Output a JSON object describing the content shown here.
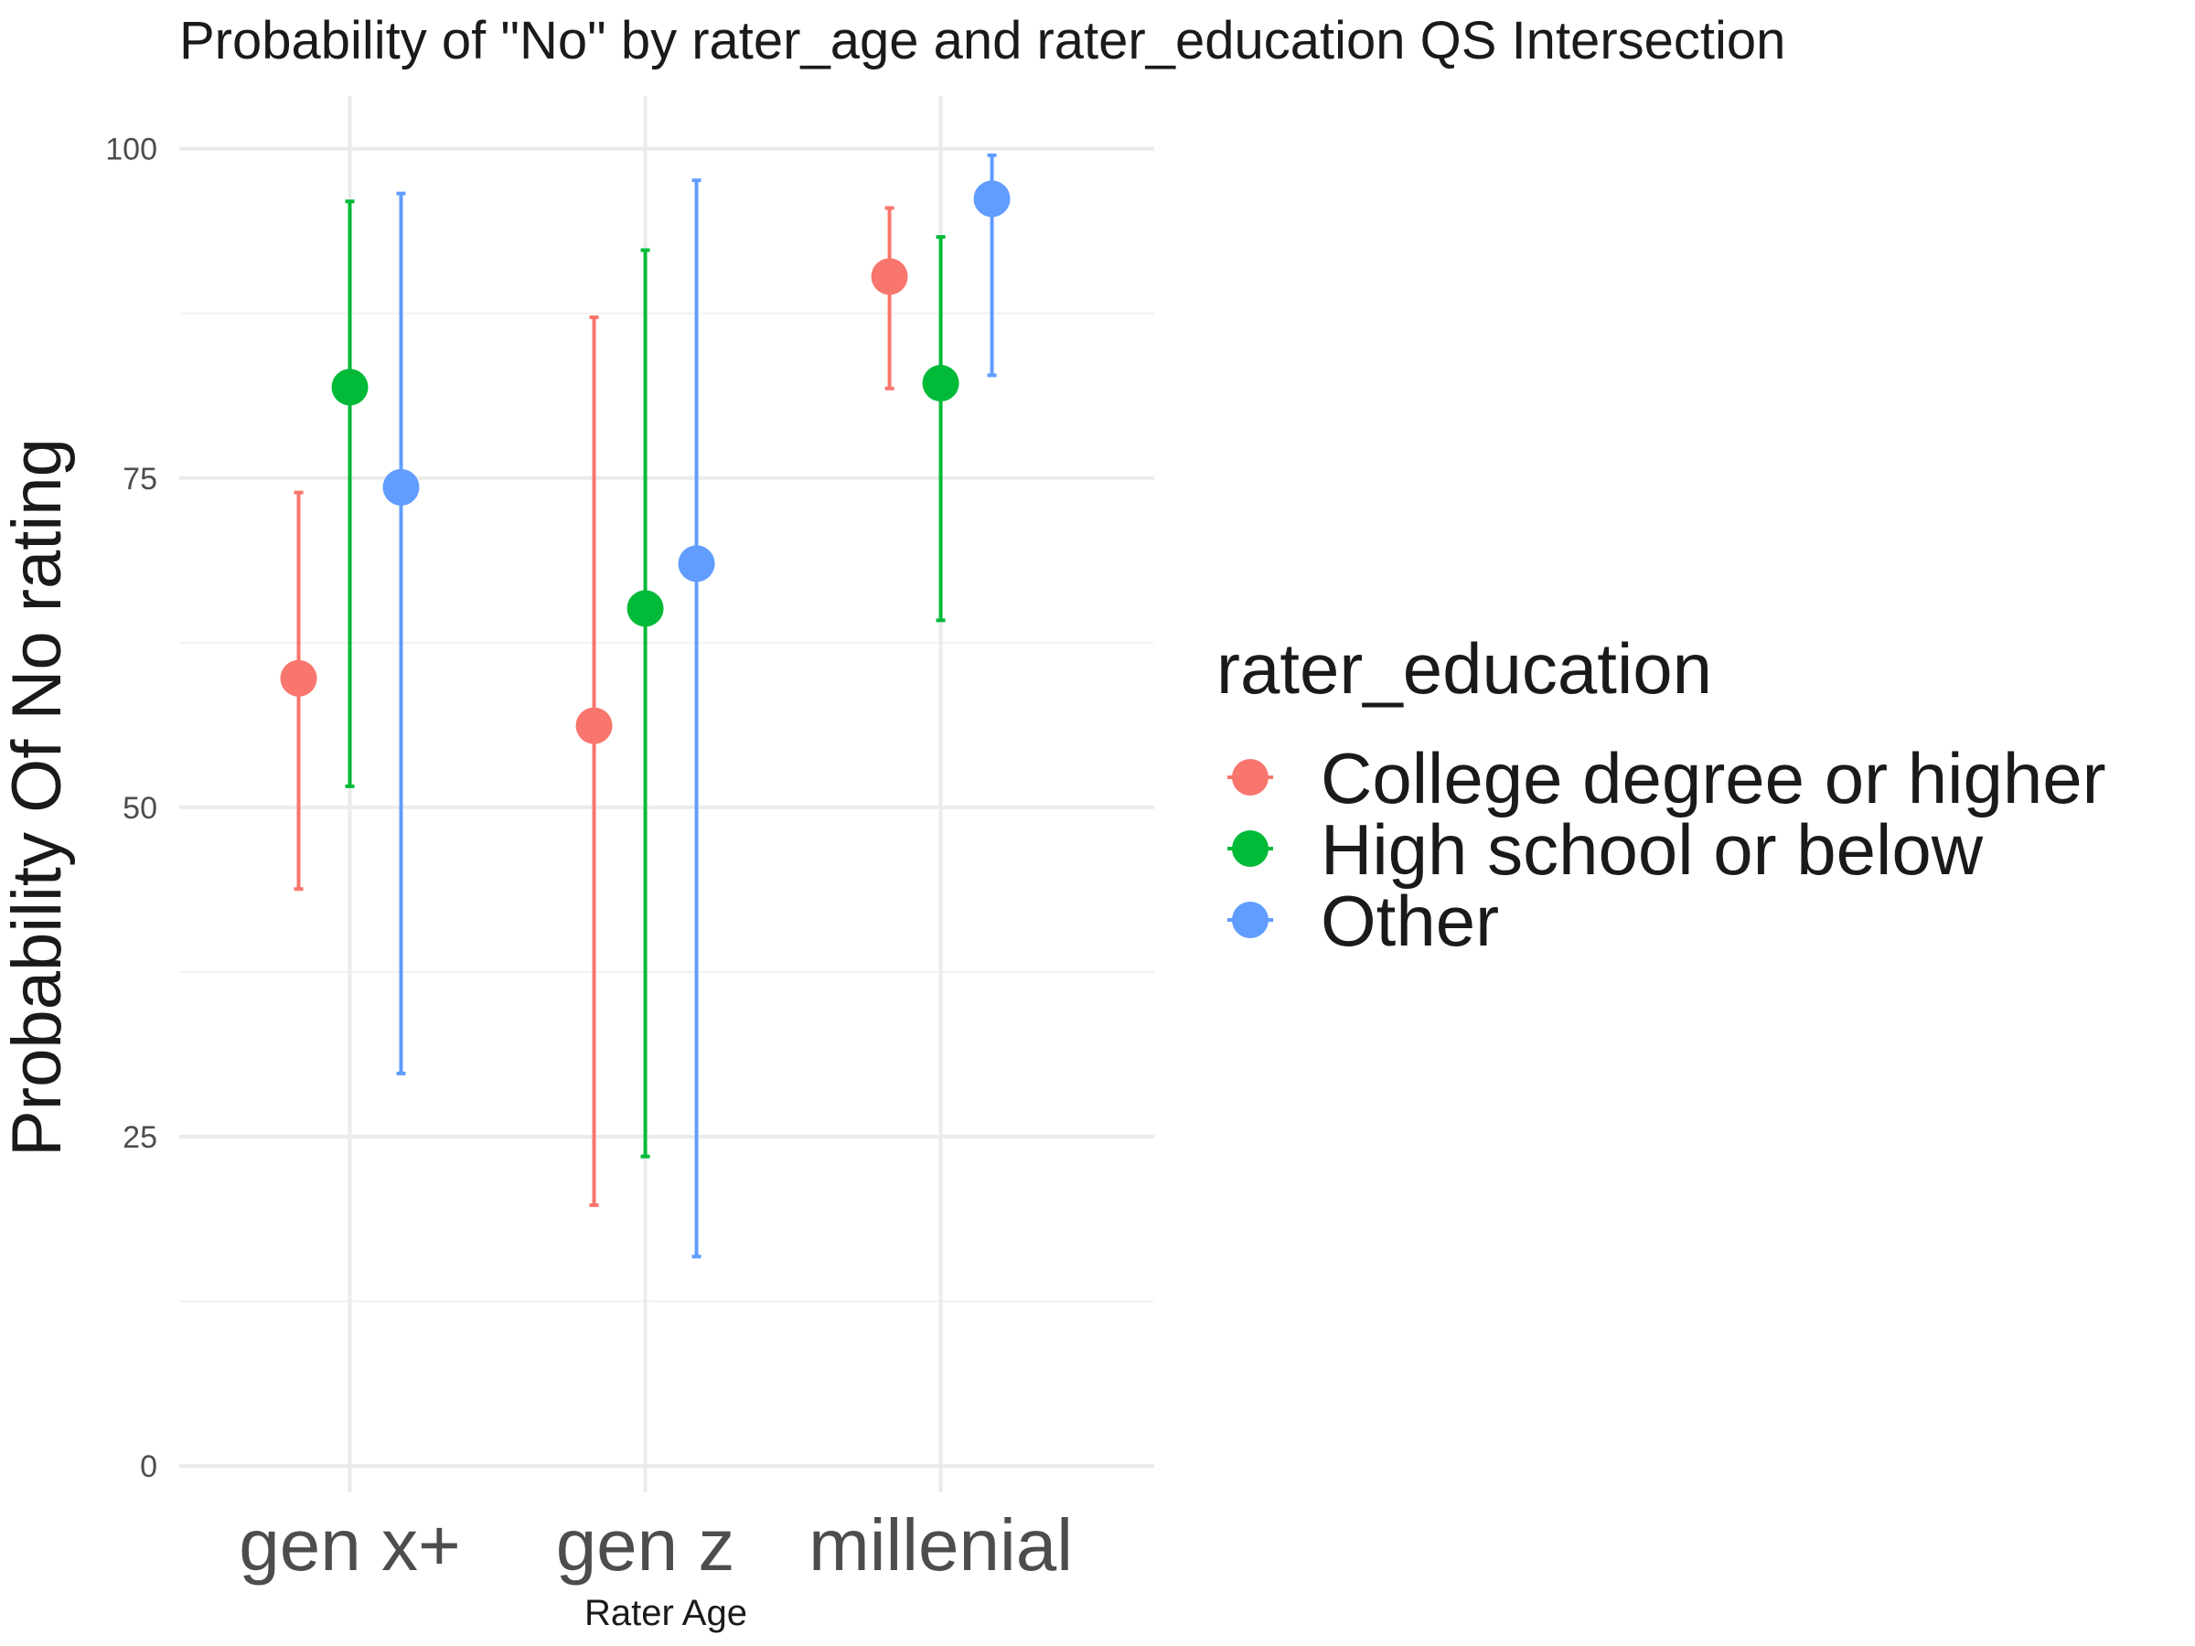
{
  "chart_data": {
    "type": "scatter",
    "title": "Probability of \"No\" by rater_age and  rater_education  QS Intersection",
    "xlabel": "Rater Age",
    "ylabel": "Probability Of No rating",
    "categories": [
      "gen x+",
      "gen z",
      "millenial"
    ],
    "ylim": [
      -2,
      104
    ],
    "yticks": [
      0,
      25,
      50,
      75,
      100
    ],
    "grid": true,
    "legend": {
      "title": "rater_education",
      "placement": "right"
    },
    "series": [
      {
        "name": "College degree or higher",
        "color": "#F8766D",
        "values": [
          59.8,
          56.2,
          90.3
        ],
        "lower": [
          43.8,
          19.8,
          81.8
        ],
        "upper": [
          73.9,
          87.2,
          95.5
        ]
      },
      {
        "name": "High school or below",
        "color": "#00BA38",
        "values": [
          81.9,
          65.1,
          82.2
        ],
        "lower": [
          51.6,
          23.5,
          64.2
        ],
        "upper": [
          96.0,
          92.3,
          93.3
        ]
      },
      {
        "name": "Other",
        "color": "#619CFF",
        "values": [
          74.3,
          68.5,
          96.2
        ],
        "lower": [
          29.8,
          15.9,
          82.8
        ],
        "upper": [
          96.6,
          97.6,
          99.5
        ]
      }
    ]
  }
}
